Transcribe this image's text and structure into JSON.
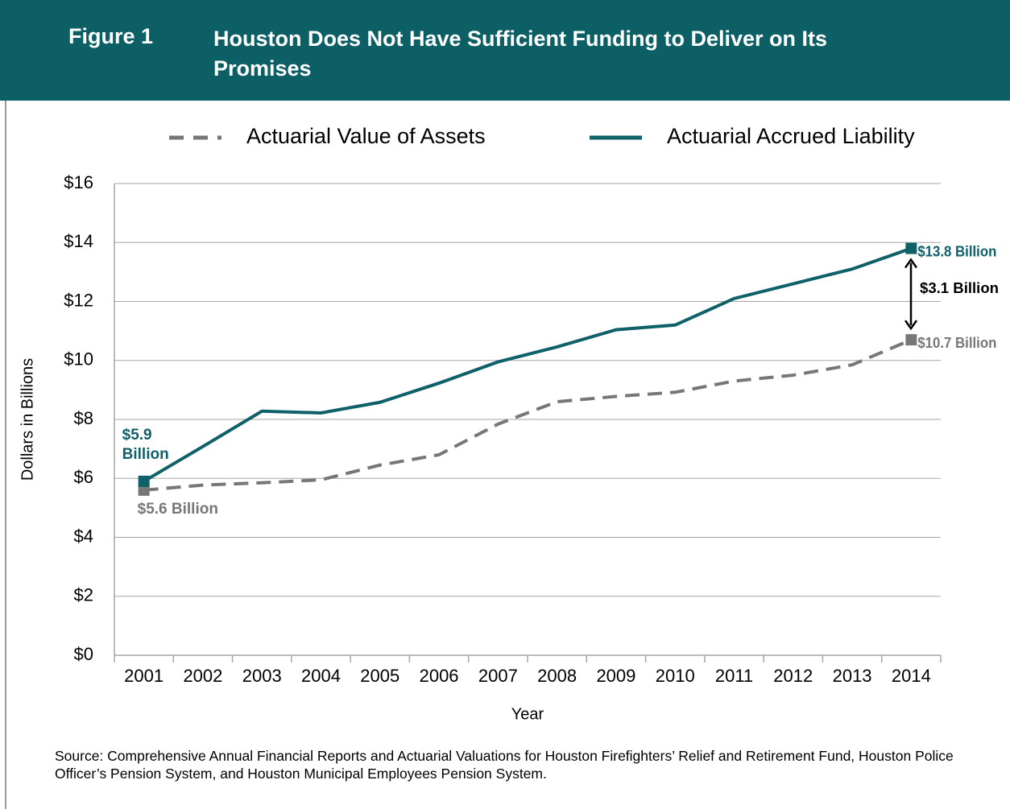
{
  "header": {
    "figure": "Figure 1",
    "title": "Houston Does Not Have Sufficient Funding to Deliver on Its Promises"
  },
  "chart_data": {
    "type": "line",
    "categories": [
      "2001",
      "2002",
      "2003",
      "2004",
      "2005",
      "2006",
      "2007",
      "2008",
      "2009",
      "2010",
      "2011",
      "2012",
      "2013",
      "2014"
    ],
    "series": [
      {
        "name": "Actuarial Value of Assets",
        "color": "#777777",
        "dashed": true,
        "values": [
          5.6,
          5.77,
          5.85,
          5.95,
          6.45,
          6.8,
          7.84,
          8.6,
          8.78,
          8.92,
          9.3,
          9.5,
          9.85,
          10.7
        ],
        "value_labels": [
          "$5.6 Billion",
          null,
          null,
          null,
          null,
          null,
          null,
          null,
          null,
          null,
          null,
          null,
          null,
          "$10.7 Billion"
        ]
      },
      {
        "name": "Actuarial Accrued Liability",
        "color": "#0f6169",
        "dashed": false,
        "values": [
          5.9,
          7.08,
          8.28,
          8.22,
          8.58,
          9.23,
          9.95,
          10.46,
          11.04,
          11.2,
          12.1,
          12.6,
          13.1,
          13.8
        ],
        "value_labels": [
          "$5.9 Billion",
          null,
          null,
          null,
          null,
          null,
          null,
          null,
          null,
          null,
          null,
          null,
          null,
          "$13.8 Billion"
        ]
      }
    ],
    "annotations": [
      "$3.1 Billion"
    ],
    "ylabel": "Dollars in Billions",
    "xlabel": "Year",
    "ylim": [
      0,
      16
    ],
    "yticks": [
      {
        "value": 0,
        "label": "$0"
      },
      {
        "value": 2,
        "label": "$2"
      },
      {
        "value": 4,
        "label": "$4"
      },
      {
        "value": 6,
        "label": "$6"
      },
      {
        "value": 8,
        "label": "$8"
      },
      {
        "value": 10,
        "label": "$10"
      },
      {
        "value": 12,
        "label": "$12"
      },
      {
        "value": 14,
        "label": "$14"
      },
      {
        "value": 16,
        "label": "$16"
      }
    ],
    "grid": true,
    "legend": "top"
  },
  "source": "Source: Comprehensive Annual Financial Reports and Actuarial Valuations for Houston Firefighters’ Relief and Retirement Fund, Houston Police Officer’s Pension System, and Houston Municipal Employees Pension System."
}
